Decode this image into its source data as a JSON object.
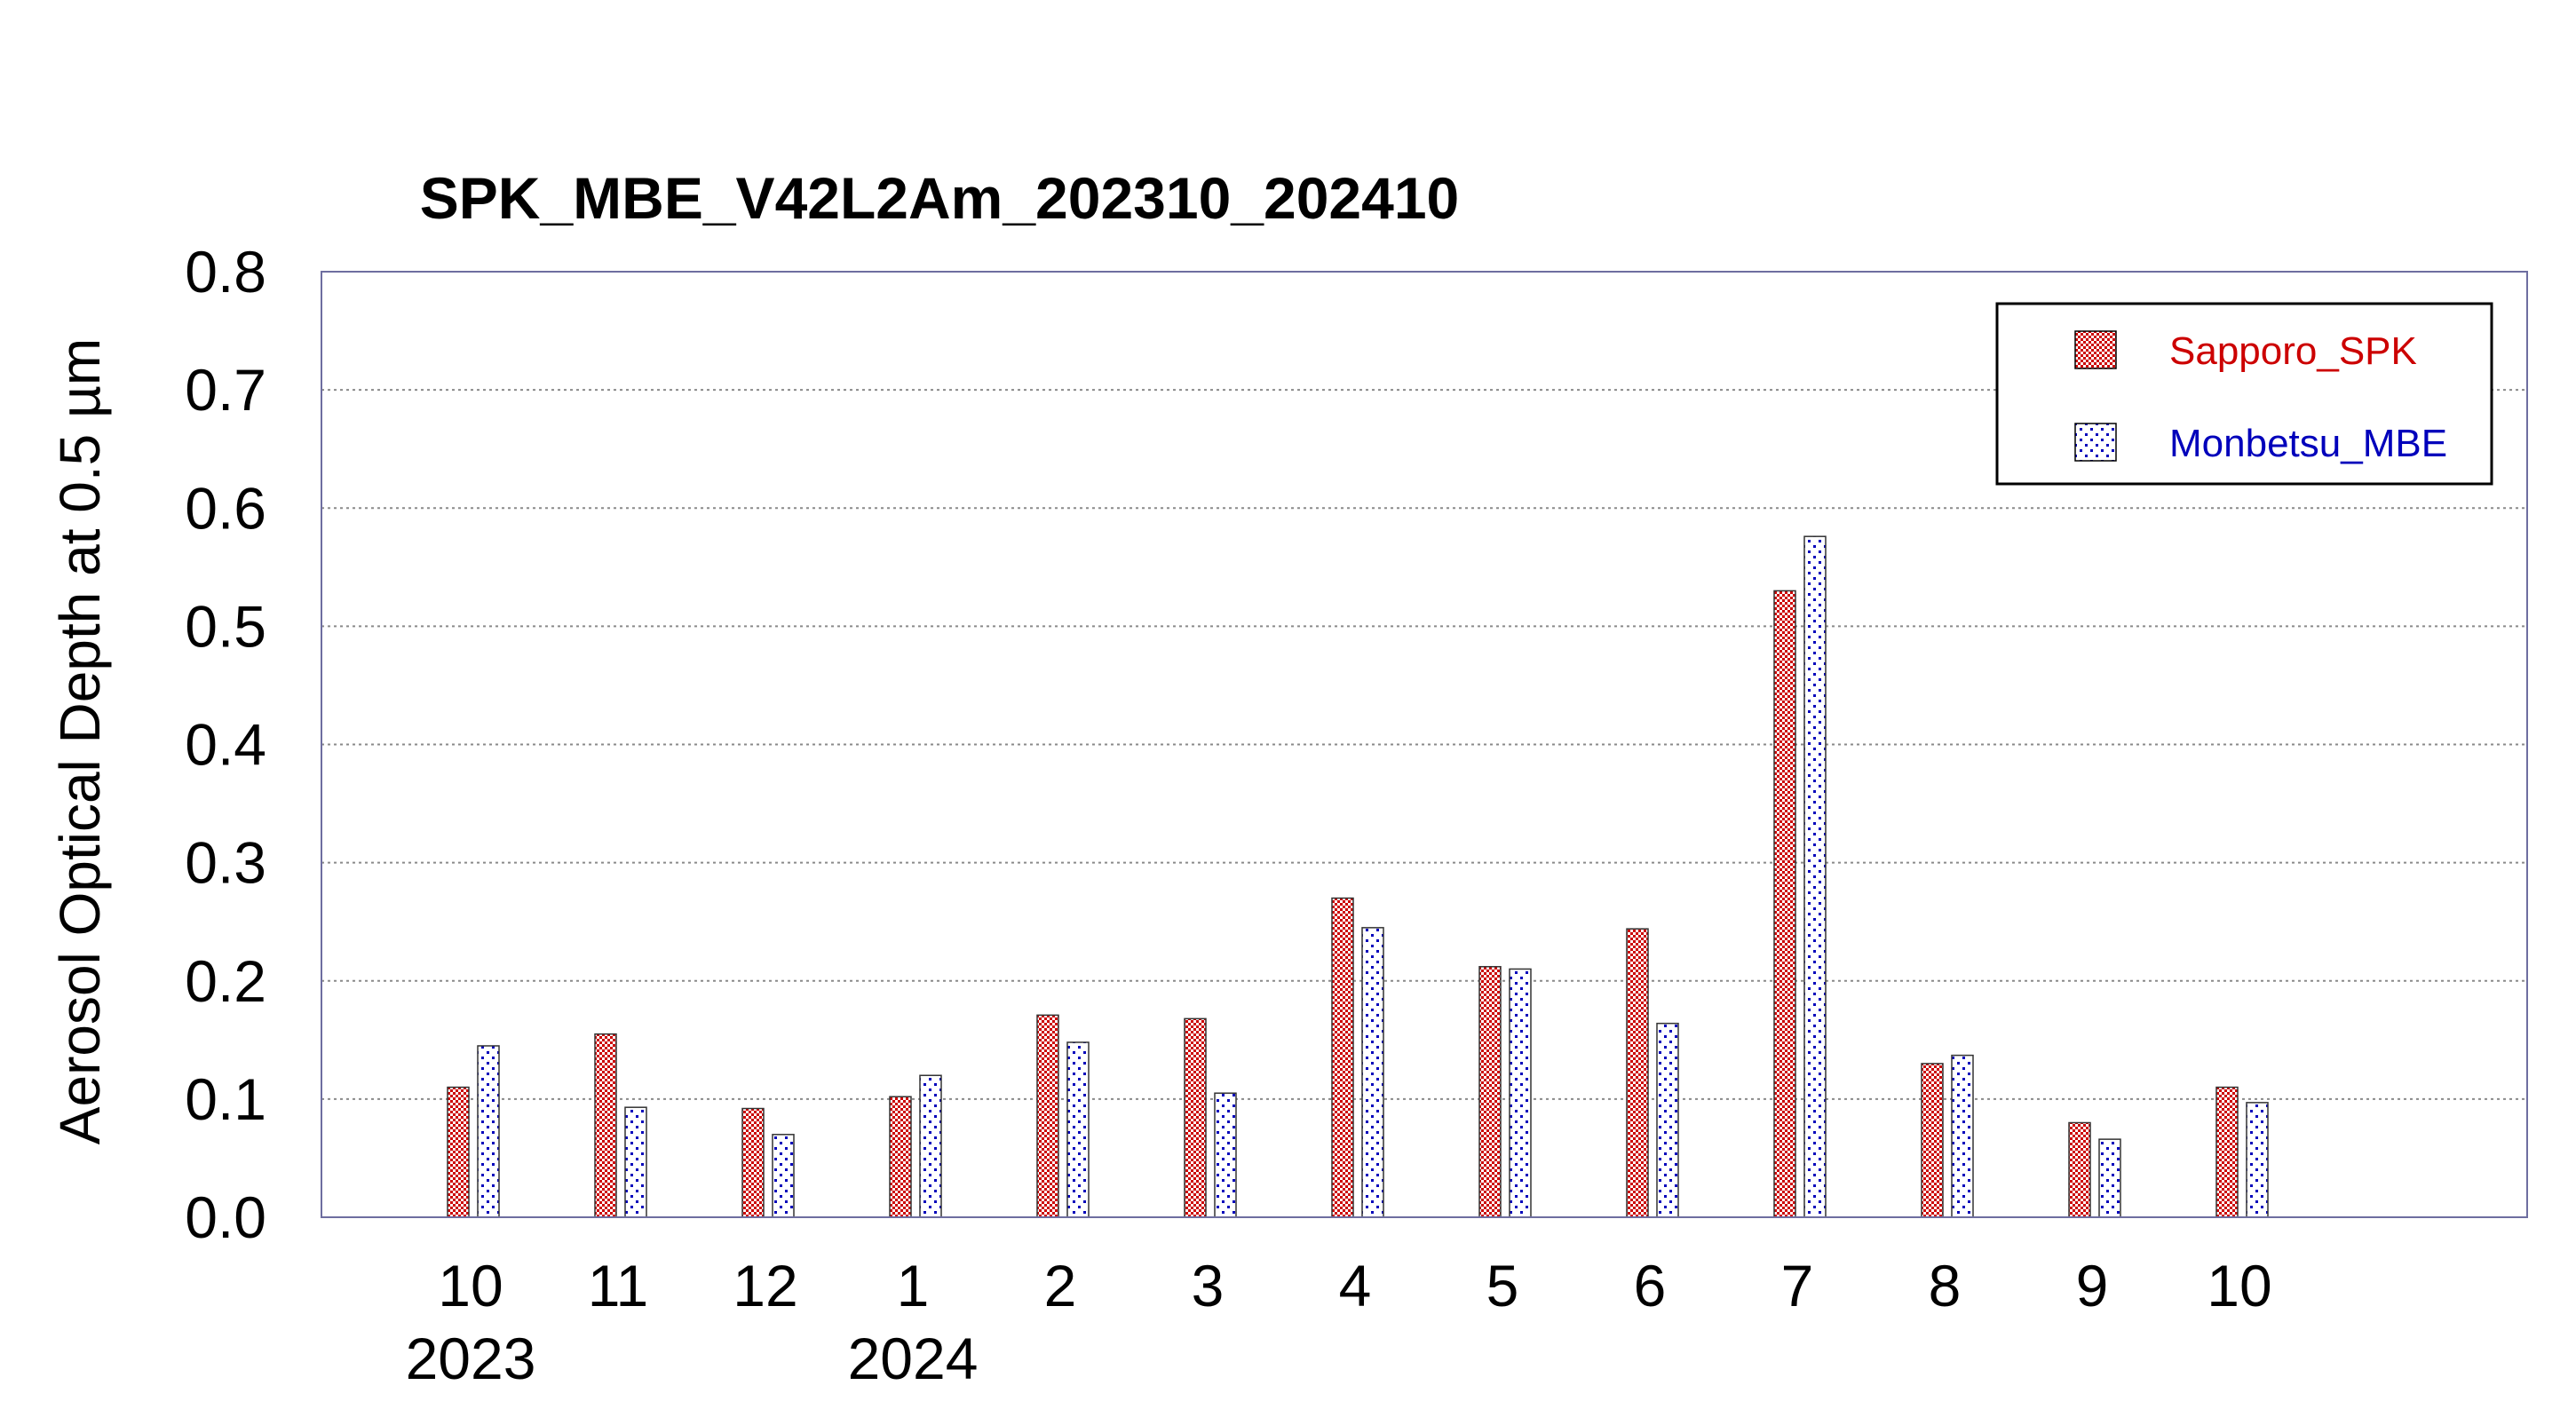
{
  "chart_data": {
    "type": "bar",
    "title": "SPK_MBE_V42L2Am_202310_202410",
    "xlabel": "",
    "ylabel": "Aerosol Optical Depth at 0.5 µm",
    "ylim": [
      0.0,
      0.8
    ],
    "yticks": [
      "0.0",
      "0.1",
      "0.2",
      "0.3",
      "0.4",
      "0.5",
      "0.6",
      "0.7",
      "0.8"
    ],
    "categories": [
      "10",
      "11",
      "12",
      "1",
      "2",
      "3",
      "4",
      "5",
      "6",
      "7",
      "8",
      "9",
      "10"
    ],
    "year_labels": [
      {
        "category_index": 0,
        "label": "2023"
      },
      {
        "category_index": 3,
        "label": "2024"
      }
    ],
    "grid": true,
    "legend_position": "top-right",
    "series": [
      {
        "name": "Sapporo_SPK",
        "color": "#cc0000",
        "pattern": "crosshatch",
        "values": [
          0.11,
          0.155,
          0.092,
          0.102,
          0.171,
          0.168,
          0.27,
          0.212,
          0.244,
          0.53,
          0.13,
          0.08,
          0.11
        ]
      },
      {
        "name": "Monbetsu_MBE",
        "color": "#0000bb",
        "pattern": "dots",
        "values": [
          0.145,
          0.093,
          0.07,
          0.12,
          0.148,
          0.105,
          0.245,
          0.21,
          0.164,
          0.576,
          0.137,
          0.066,
          0.097
        ]
      }
    ]
  }
}
